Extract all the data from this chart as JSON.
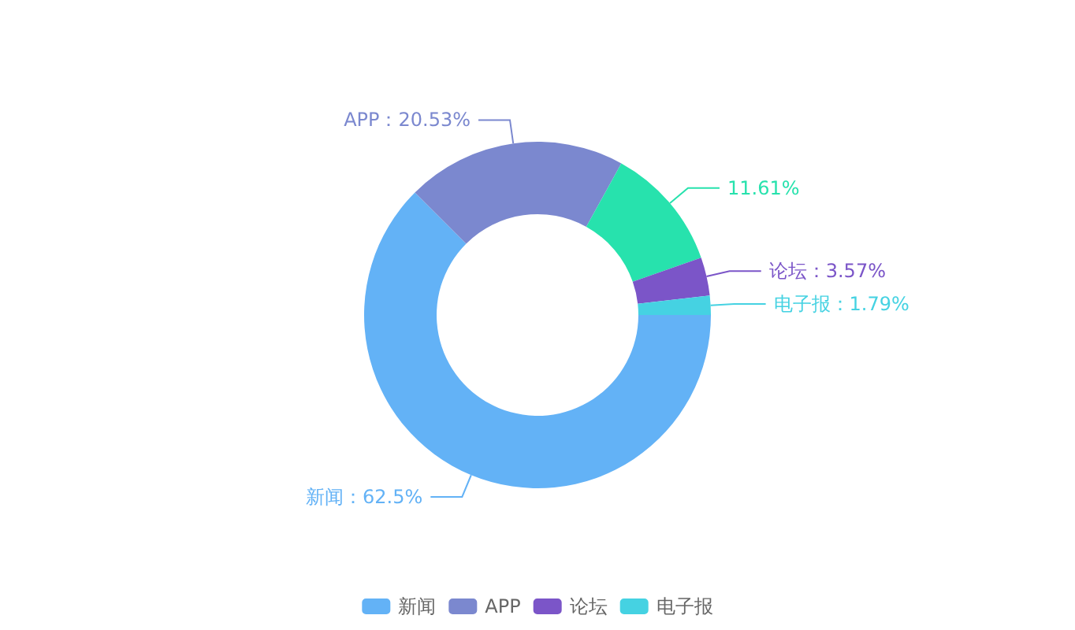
{
  "chart_data": {
    "type": "donut",
    "categories": [
      "新闻",
      "APP",
      null,
      "论坛",
      "电子报"
    ],
    "values": [
      62.5,
      20.53,
      11.61,
      3.57,
      1.79
    ],
    "colors": [
      "#63b2f6",
      "#7b88cf",
      "#27e2ad",
      "#7b55c8",
      "#45d2e2"
    ],
    "value_labels": [
      "新闻：62.5%",
      "APP：20.53%",
      "11.61%",
      "论坛：3.57%",
      "电子报：1.79%"
    ],
    "legend": "bottom"
  }
}
